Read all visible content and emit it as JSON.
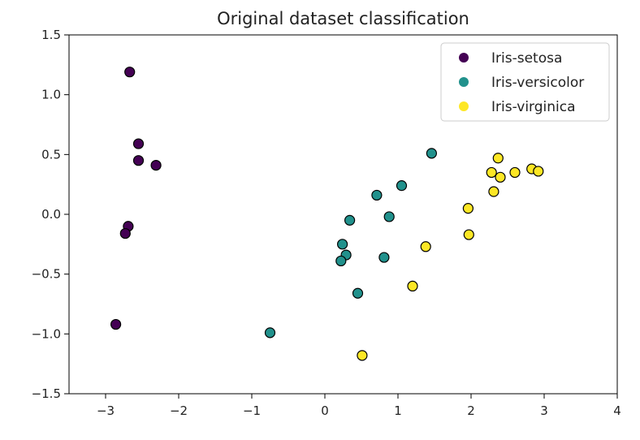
{
  "chart_data": {
    "type": "scatter",
    "title": "Original dataset classification",
    "xlabel": "",
    "ylabel": "",
    "xlim": [
      -3.5,
      4
    ],
    "ylim": [
      -1.5,
      1.5
    ],
    "xticks": [
      -3,
      -2,
      -1,
      0,
      1,
      2,
      3,
      4
    ],
    "yticks": [
      -1.5,
      -1.0,
      -0.5,
      0.0,
      0.5,
      1.0,
      1.5
    ],
    "xtick_labels": [
      "−3",
      "−2",
      "−1",
      "0",
      "1",
      "2",
      "3",
      "4"
    ],
    "ytick_labels": [
      "−1.5",
      "−1.0",
      "−0.5",
      "0.0",
      "0.5",
      "1.0",
      "1.5"
    ],
    "grid": false,
    "legend_position": "top-right",
    "series": [
      {
        "name": "Iris-setosa",
        "color": "#440154",
        "points": [
          {
            "x": -2.67,
            "y": 1.19
          },
          {
            "x": -2.55,
            "y": 0.59
          },
          {
            "x": -2.55,
            "y": 0.45
          },
          {
            "x": -2.31,
            "y": 0.41
          },
          {
            "x": -2.69,
            "y": -0.1
          },
          {
            "x": -2.73,
            "y": -0.16
          },
          {
            "x": -2.86,
            "y": -0.92
          }
        ]
      },
      {
        "name": "Iris-versicolor",
        "color": "#21918c",
        "points": [
          {
            "x": 1.46,
            "y": 0.51
          },
          {
            "x": 1.05,
            "y": 0.24
          },
          {
            "x": 0.71,
            "y": 0.16
          },
          {
            "x": 0.88,
            "y": -0.02
          },
          {
            "x": 0.34,
            "y": -0.05
          },
          {
            "x": 0.24,
            "y": -0.25
          },
          {
            "x": 0.29,
            "y": -0.34
          },
          {
            "x": 0.22,
            "y": -0.39
          },
          {
            "x": 0.81,
            "y": -0.36
          },
          {
            "x": 0.45,
            "y": -0.66
          },
          {
            "x": -0.75,
            "y": -0.99
          }
        ]
      },
      {
        "name": "Iris-virginica",
        "color": "#fde725",
        "points": [
          {
            "x": 2.37,
            "y": 0.47
          },
          {
            "x": 2.28,
            "y": 0.35
          },
          {
            "x": 2.4,
            "y": 0.31
          },
          {
            "x": 2.6,
            "y": 0.35
          },
          {
            "x": 2.83,
            "y": 0.38
          },
          {
            "x": 2.92,
            "y": 0.36
          },
          {
            "x": 2.31,
            "y": 0.19
          },
          {
            "x": 1.96,
            "y": 0.05
          },
          {
            "x": 1.97,
            "y": -0.17
          },
          {
            "x": 1.38,
            "y": -0.27
          },
          {
            "x": 1.2,
            "y": -0.6
          },
          {
            "x": 0.51,
            "y": -1.18
          }
        ]
      }
    ]
  }
}
